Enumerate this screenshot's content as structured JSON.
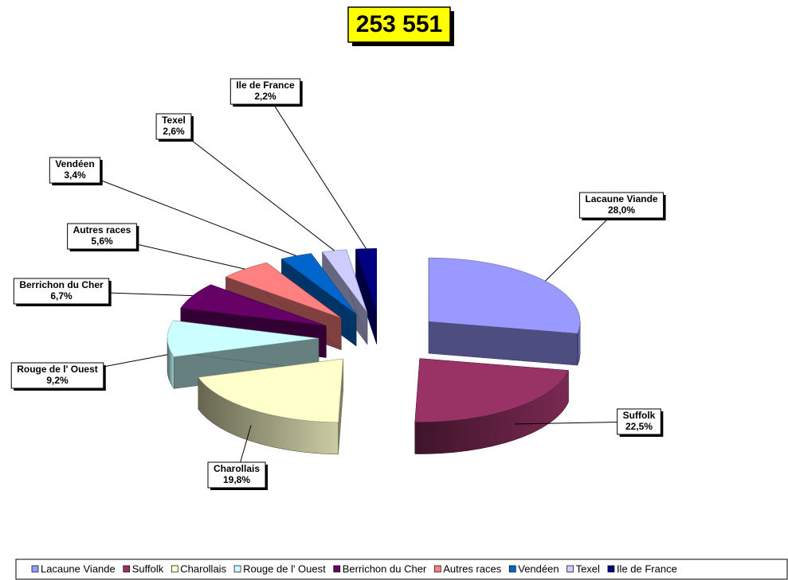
{
  "chart_data": {
    "type": "pie",
    "title": "253 551",
    "categories": [
      "Lacaune Viande",
      "Suffolk",
      "Charollais",
      "Rouge de l' Ouest",
      "Berrichon du Cher",
      "Autres races",
      "Vendéen",
      "Texel",
      "Ile de France"
    ],
    "values": [
      28.0,
      22.5,
      19.8,
      9.2,
      6.7,
      5.6,
      3.4,
      2.6,
      2.2
    ],
    "value_labels": [
      "28,0%",
      "22,5%",
      "19,8%",
      "9,2%",
      "6,7%",
      "5,6%",
      "3,4%",
      "2,6%",
      "2,2%"
    ],
    "colors": [
      "#9999ff",
      "#993366",
      "#ffffcc",
      "#ccffff",
      "#660066",
      "#ff8080",
      "#0066cc",
      "#ccccff",
      "#000080"
    ],
    "legend": "bottom"
  }
}
